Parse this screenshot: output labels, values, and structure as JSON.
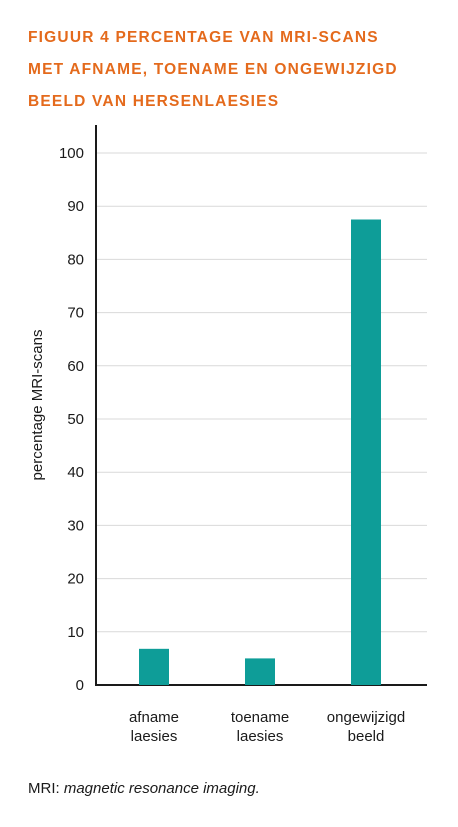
{
  "figure": {
    "title_lines": [
      "FIGUUR 4  PERCENTAGE VAN MRI-SCANS",
      "MET AFNAME, TOENAME EN ONGEWIJZIGD",
      "BEELD VAN HERSENLAESIES"
    ],
    "footnote_abbr": "MRI:",
    "footnote_text": "magnetic resonance imaging."
  },
  "colors": {
    "title": "#e46a1c",
    "bar": "#0e9d98",
    "grid": "#d9d9d9",
    "axis": "#1a1a1a"
  },
  "chart_data": {
    "type": "bar",
    "title": "FIGUUR 4  PERCENTAGE VAN MRI-SCANS MET AFNAME, TOENAME EN ONGEWIJZIGD BEELD VAN HERSENLAESIES",
    "ylabel": "percentage MRI-scans",
    "xlabel": "",
    "categories": [
      [
        "afname",
        "laesies"
      ],
      [
        "toename",
        "laesies"
      ],
      [
        "ongewijzigd",
        "beeld"
      ]
    ],
    "values": [
      6.8,
      5.0,
      87.5
    ],
    "ylim": [
      0,
      105
    ],
    "yticks": [
      0,
      10,
      20,
      30,
      40,
      50,
      60,
      70,
      80,
      90,
      100
    ],
    "grid": true
  }
}
